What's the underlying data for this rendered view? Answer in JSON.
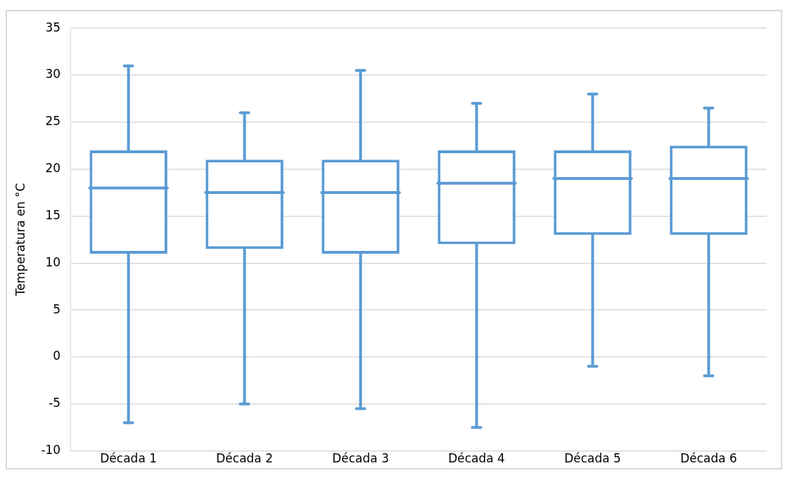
{
  "chart_data": {
    "type": "box",
    "ylabel": "Temperatura en °C",
    "categories": [
      "Década 1",
      "Década 2",
      "Década 3",
      "Década 4",
      "Década 5",
      "Década 6"
    ],
    "color": "#5b9bd5",
    "boxes": [
      {
        "low": -7,
        "q1": 11,
        "median": 18,
        "q3": 22,
        "high": 31
      },
      {
        "low": -5,
        "q1": 11.5,
        "median": 17.5,
        "q3": 21,
        "high": 26
      },
      {
        "low": -5.5,
        "q1": 11,
        "median": 17.5,
        "q3": 21,
        "high": 30.5
      },
      {
        "low": -7.5,
        "q1": 12,
        "median": 18.5,
        "q3": 22,
        "high": 27
      },
      {
        "low": -1,
        "q1": 13,
        "median": 19,
        "q3": 22,
        "high": 28
      },
      {
        "low": -2,
        "q1": 13,
        "median": 19,
        "q3": 22.5,
        "high": 26.5
      }
    ],
    "ylim": [
      -10,
      35
    ],
    "yticks": [
      -10,
      -5,
      0,
      5,
      10,
      15,
      20,
      25,
      30,
      35
    ],
    "grid": "y",
    "legend": false
  }
}
